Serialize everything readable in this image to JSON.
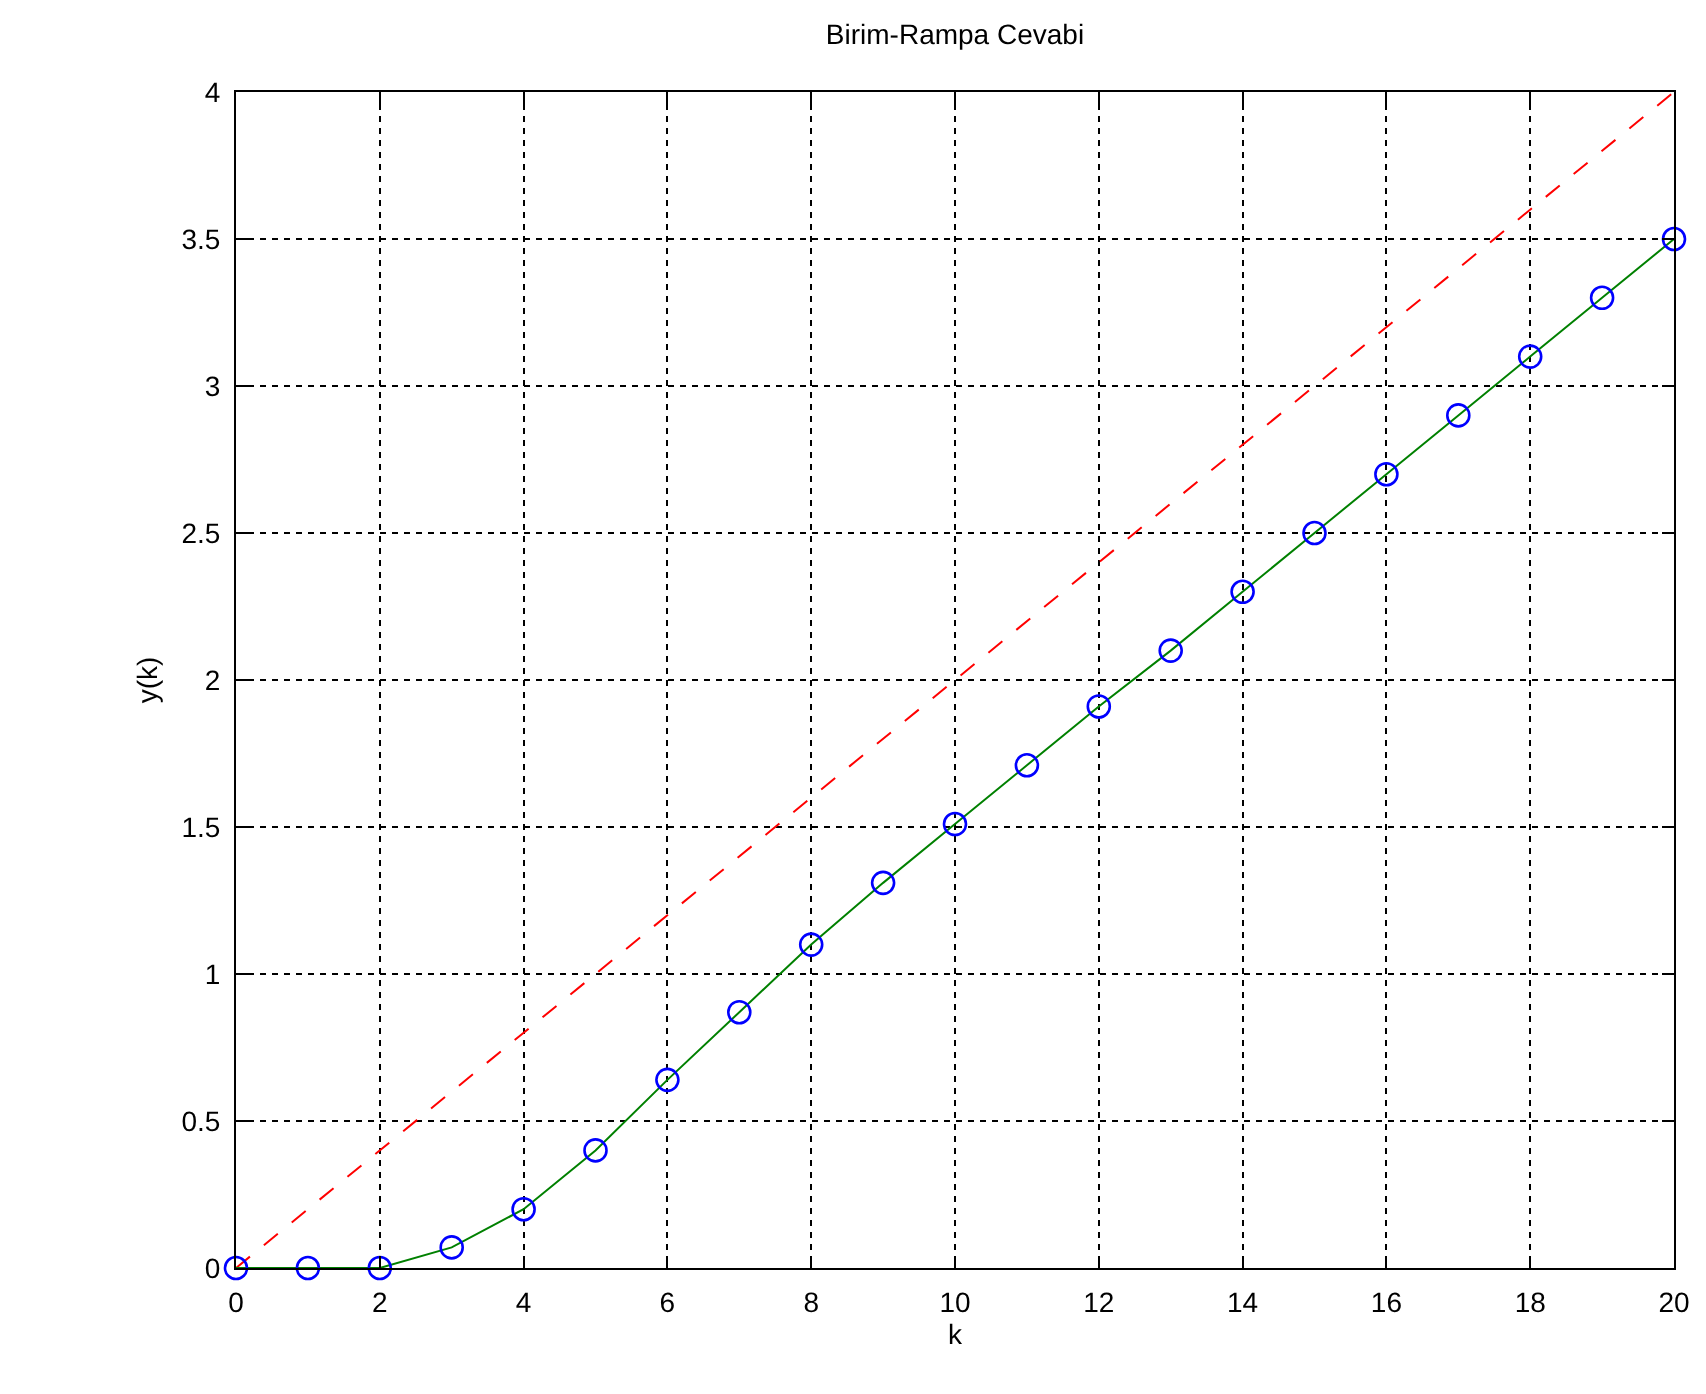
{
  "chart_data": {
    "type": "line",
    "title": "Birim-Rampa Cevabi",
    "xlabel": "k",
    "ylabel": "y(k)",
    "x": [
      0,
      1,
      2,
      3,
      4,
      5,
      6,
      7,
      8,
      9,
      10,
      11,
      12,
      13,
      14,
      15,
      16,
      17,
      18,
      19,
      20
    ],
    "series": [
      {
        "color": "#ff0000",
        "line_style": "dashed",
        "marker": "none",
        "x": [
          0,
          20
        ],
        "values": [
          0,
          4
        ]
      },
      {
        "color": "#008000",
        "line_style": "solid",
        "marker": "none",
        "values": [
          0,
          0,
          0,
          0.07,
          0.2,
          0.4,
          0.64,
          0.87,
          1.1,
          1.31,
          1.51,
          1.71,
          1.91,
          2.1,
          2.3,
          2.5,
          2.7,
          2.9,
          3.1,
          3.3,
          3.5
        ]
      },
      {
        "type": "scatter",
        "color": "#0000ff",
        "marker": "circle",
        "values": [
          0,
          0,
          0,
          0.07,
          0.2,
          0.4,
          0.64,
          0.87,
          1.1,
          1.31,
          1.51,
          1.71,
          1.91,
          2.1,
          2.3,
          2.5,
          2.7,
          2.9,
          3.1,
          3.3,
          3.5
        ]
      }
    ],
    "xlim": [
      0,
      20
    ],
    "xticks": [
      0,
      2,
      4,
      6,
      8,
      10,
      12,
      14,
      16,
      18,
      20
    ],
    "ylim": [
      0,
      4
    ],
    "yticks": [
      0,
      0.5,
      1,
      1.5,
      2,
      2.5,
      3,
      3.5,
      4
    ],
    "grid": true
  }
}
